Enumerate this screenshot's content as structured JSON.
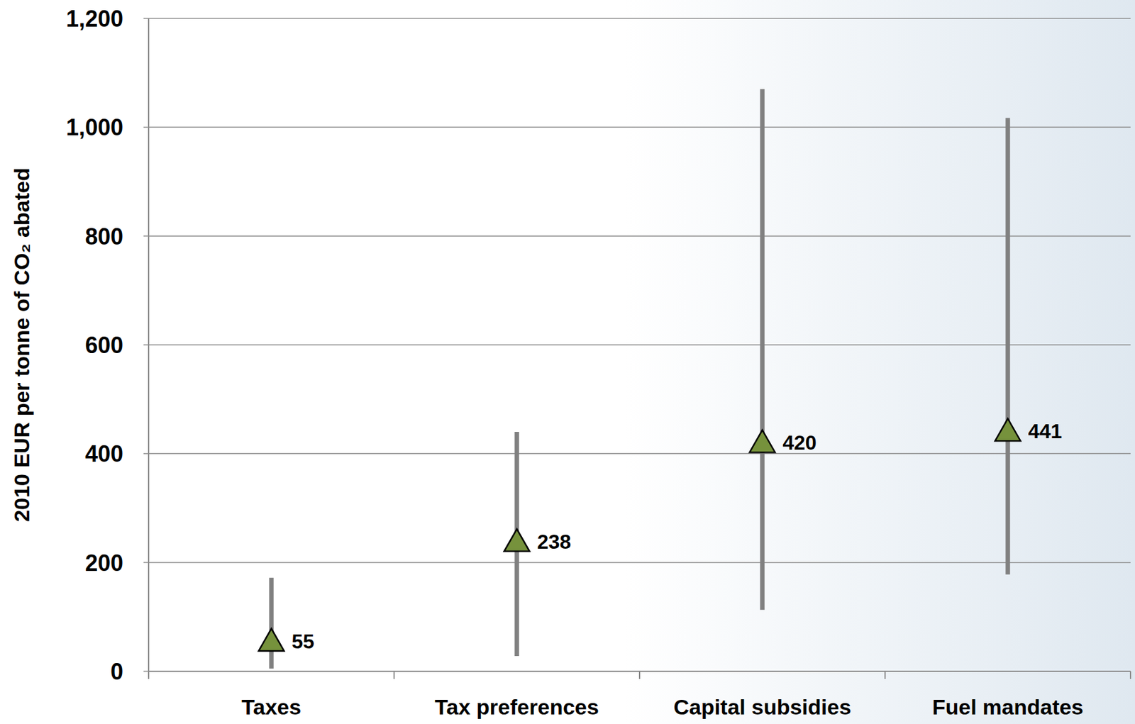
{
  "chart_data": {
    "type": "point_range",
    "y_label": "2010 EUR per tonne of CO₂ abated",
    "categories": [
      "Taxes",
      "Tax preferences",
      "Capital subsidies",
      "Fuel mandates"
    ],
    "values": [
      55,
      238,
      420,
      441
    ],
    "low": [
      5,
      28,
      113,
      178
    ],
    "high": [
      172,
      440,
      1070,
      1017
    ],
    "color": "#76923c",
    "marker": "triangle",
    "data_labels": true,
    "grid": true,
    "ylim": [
      0,
      1200
    ],
    "yticks": [
      0,
      200,
      400,
      600,
      800,
      {
        "value": 1000,
        "label": "1,000"
      },
      {
        "value": 1200,
        "label": "1,200"
      }
    ]
  }
}
